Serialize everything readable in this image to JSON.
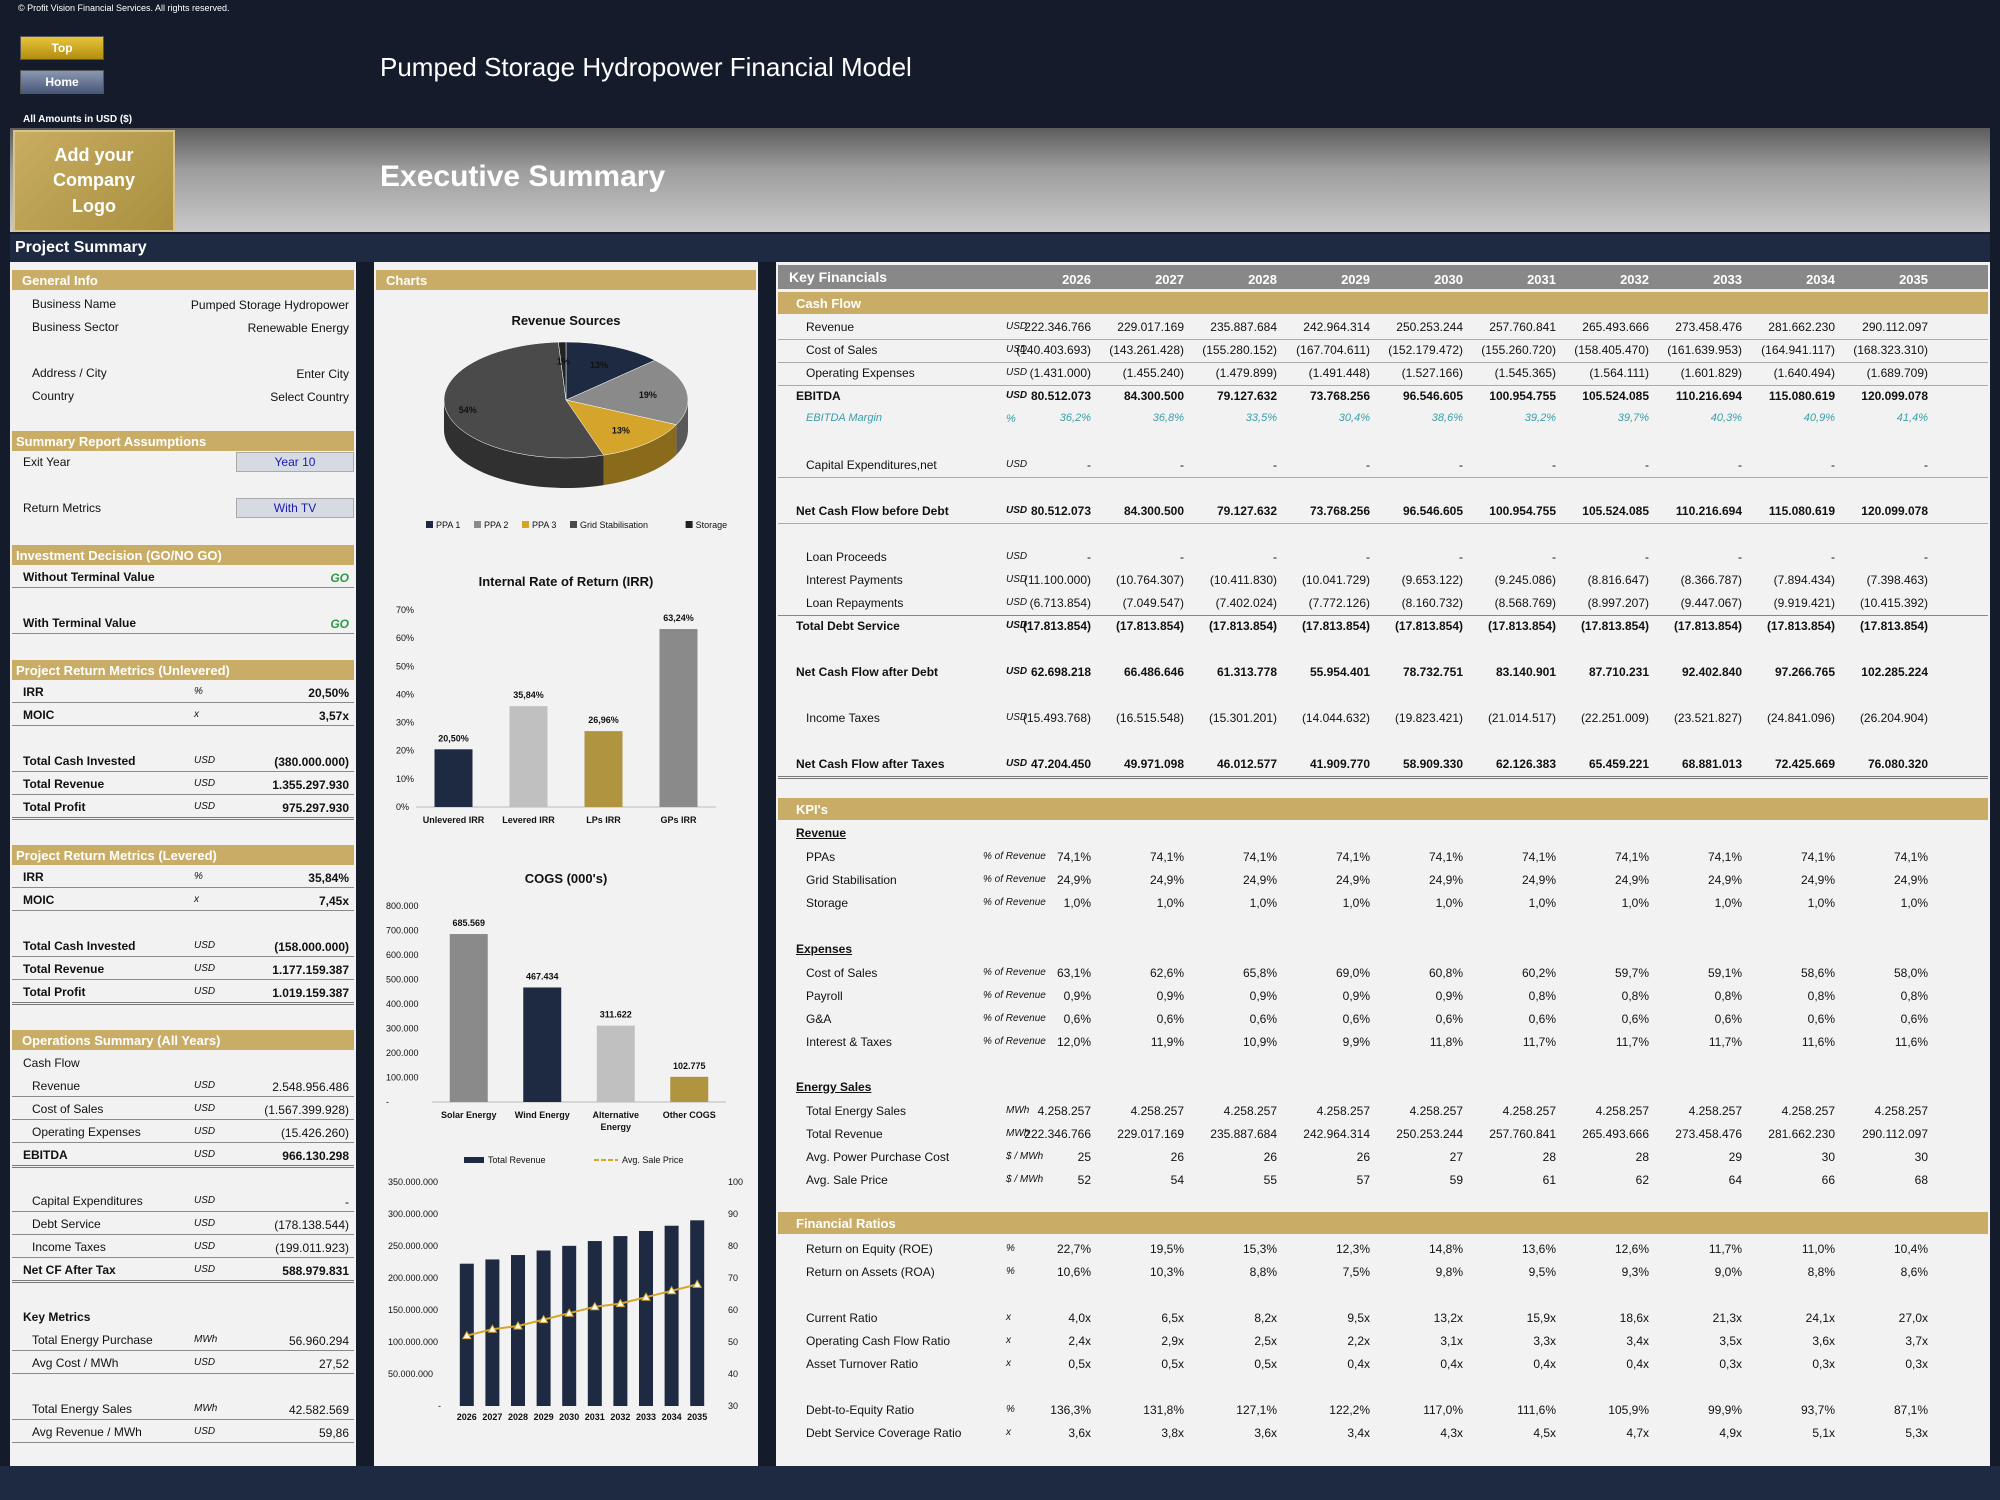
{
  "header": {
    "copyright": "© Profit Vision Financial Services. All rights reserved.",
    "top_button": "Top",
    "home_button": "Home",
    "title": "Pumped Storage Hydropower Financial Model",
    "amounts_label": "All Amounts in  USD ($)",
    "logo_text": "Add your Company Logo",
    "section_title": "Executive Summary",
    "project_summary": "Project Summary"
  },
  "left": {
    "general_info": {
      "title": "General Info",
      "rows": [
        {
          "label": "Business Name",
          "value": "Pumped Storage Hydropower"
        },
        {
          "label": "Business Sector",
          "value": "Renewable Energy"
        },
        {
          "label": "Address / City",
          "value": "Enter City"
        },
        {
          "label": "Country",
          "value": "Select Country"
        }
      ]
    },
    "assumptions": {
      "title": "Summary  Report Assumptions",
      "exit_year_label": "Exit Year",
      "exit_year_value": "Year 10",
      "return_metrics_label": "Return Metrics",
      "return_metrics_value": "With TV"
    },
    "investment": {
      "title": "Investment Decision (GO/NO GO)",
      "without_label": "Without Terminal Value",
      "without_value": "GO",
      "with_label": "With Terminal Value",
      "with_value": "GO"
    },
    "unlevered": {
      "title": "Project Return Metrics (Unlevered)",
      "irr_label": "IRR",
      "irr_unit": "%",
      "irr_value": "20,50%",
      "moic_label": "MOIC",
      "moic_unit": "x",
      "moic_value": "3,57x",
      "tci_label": "Total Cash Invested",
      "tci_unit": "USD",
      "tci_value": "(380.000.000)",
      "tr_label": "Total Revenue",
      "tr_unit": "USD",
      "tr_value": "1.355.297.930",
      "tp_label": "Total Profit",
      "tp_unit": "USD",
      "tp_value": "975.297.930"
    },
    "levered": {
      "title": "Project Return Metrics (Levered)",
      "irr_label": "IRR",
      "irr_unit": "%",
      "irr_value": "35,84%",
      "moic_label": "MOIC",
      "moic_unit": "x",
      "moic_value": "7,45x",
      "tci_label": "Total Cash Invested",
      "tci_unit": "USD",
      "tci_value": "(158.000.000)",
      "tr_label": "Total Revenue",
      "tr_unit": "USD",
      "tr_value": "1.177.159.387",
      "tp_label": "Total Profit",
      "tp_unit": "USD",
      "tp_value": "1.019.159.387"
    },
    "ops": {
      "title": "Operations Summary (All Years)",
      "cash_flow_label": "Cash Flow",
      "revenue_label": "Revenue",
      "revenue_unit": "USD",
      "revenue_value": "2.548.956.486",
      "cos_label": "Cost of Sales",
      "cos_unit": "USD",
      "cos_value": "(1.567.399.928)",
      "opex_label": "Operating Expenses",
      "opex_unit": "USD",
      "opex_value": "(15.426.260)",
      "ebitda_label": "EBITDA",
      "ebitda_unit": "USD",
      "ebitda_value": "966.130.298",
      "capex_label": "Capital Expenditures",
      "capex_unit": "USD",
      "capex_value": "-",
      "debt_label": "Debt Service",
      "debt_unit": "USD",
      "debt_value": "(178.138.544)",
      "tax_label": "Income Taxes",
      "tax_unit": "USD",
      "tax_value": "(199.011.923)",
      "netcf_label": "Net CF After Tax",
      "netcf_unit": "USD",
      "netcf_value": "588.979.831",
      "key_metrics_label": "Key Metrics",
      "tep_label": "Total Energy Purchase",
      "tep_unit": "MWh",
      "tep_value": "56.960.294",
      "acm_label": "Avg Cost / MWh",
      "acm_unit": "USD",
      "acm_value": "27,52",
      "tes_label": "Total Energy Sales",
      "tes_unit": "MWh",
      "tes_value": "42.582.569",
      "arm_label": "Avg Revenue / MWh",
      "arm_unit": "USD",
      "arm_value": "59,86"
    }
  },
  "charts_title": "Charts",
  "chart_data": [
    {
      "type": "pie",
      "title": "Revenue Sources",
      "labels": [
        "PPA 1",
        "PPA 2",
        "PPA 3",
        "Grid Stabilisation",
        "Storage"
      ],
      "values": [
        13,
        19,
        13,
        54,
        1
      ],
      "value_labels": [
        "13%",
        "19%",
        "13%",
        "54%",
        "1%"
      ],
      "colors": [
        "#1e2a42",
        "#8a8a8a",
        "#d4a52a",
        "#4a4a4a",
        "#222222"
      ]
    },
    {
      "type": "bar",
      "title": "Internal Rate of Return (IRR)",
      "categories": [
        "Unlevered IRR",
        "Levered IRR",
        "LPs IRR",
        "GPs IRR"
      ],
      "values": [
        20.5,
        35.84,
        26.96,
        63.24
      ],
      "value_labels": [
        "20,50%",
        "35,84%",
        "26,96%",
        "63,24%"
      ],
      "ylim": [
        0,
        70
      ],
      "yticks": [
        "0%",
        "10%",
        "20%",
        "30%",
        "40%",
        "50%",
        "60%",
        "70%"
      ],
      "colors": [
        "#1e2a42",
        "#c0c0c0",
        "#b09440",
        "#8a8a8a"
      ]
    },
    {
      "type": "bar",
      "title": "COGS (000's)",
      "categories": [
        "Solar Energy",
        "Wind Energy",
        "Alternative Energy",
        "Other COGS"
      ],
      "values": [
        685569,
        467434,
        311622,
        102775
      ],
      "value_labels": [
        "685.569",
        "467.434",
        "311.622",
        "102.775"
      ],
      "ylim": [
        0,
        800000
      ],
      "yticks": [
        "-",
        "100.000",
        "200.000",
        "300.000",
        "400.000",
        "500.000",
        "600.000",
        "700.000",
        "800.000"
      ],
      "colors": [
        "#8a8a8a",
        "#1e2a42",
        "#c0c0c0",
        "#b09440"
      ]
    },
    {
      "type": "bar",
      "title": "",
      "categories": [
        "2026",
        "2027",
        "2028",
        "2029",
        "2030",
        "2031",
        "2032",
        "2033",
        "2034",
        "2035"
      ],
      "series": [
        {
          "name": "Total Revenue",
          "values": [
            222346766,
            229017169,
            235887684,
            242964314,
            250253244,
            257760841,
            265493666,
            273458476,
            281662230,
            290112097
          ]
        },
        {
          "name": "Avg. Sale Price",
          "values": [
            52,
            54,
            55,
            57,
            59,
            61,
            62,
            64,
            66,
            68
          ]
        }
      ],
      "ylim": [
        0,
        350000000
      ],
      "y2lim": [
        30,
        100
      ],
      "yticks": [
        "-",
        "50.000.000",
        "100.000.000",
        "150.000.000",
        "200.000.000",
        "250.000.000",
        "300.000.000",
        "350.000.000"
      ],
      "y2ticks": [
        "30",
        "40",
        "50",
        "60",
        "70",
        "80",
        "90",
        "100"
      ]
    }
  ],
  "kf": {
    "title": "Key Financials",
    "years": [
      "2026",
      "2027",
      "2028",
      "2029",
      "2030",
      "2031",
      "2032",
      "2033",
      "2034",
      "2035"
    ],
    "cash_flow_title": "Cash Flow",
    "rows": [
      {
        "label": "Revenue",
        "unit": "USD",
        "values": [
          "222.346.766",
          "229.017.169",
          "235.887.684",
          "242.964.314",
          "250.253.244",
          "257.760.841",
          "265.493.666",
          "273.458.476",
          "281.662.230",
          "290.112.097"
        ]
      },
      {
        "label": "Cost of Sales",
        "unit": "USD",
        "values": [
          "(140.403.693)",
          "(143.261.428)",
          "(155.280.152)",
          "(167.704.611)",
          "(152.179.472)",
          "(155.260.720)",
          "(158.405.470)",
          "(161.639.953)",
          "(164.941.117)",
          "(168.323.310)"
        ]
      },
      {
        "label": "Operating Expenses",
        "unit": "USD",
        "values": [
          "(1.431.000)",
          "(1.455.240)",
          "(1.479.899)",
          "(1.491.448)",
          "(1.527.166)",
          "(1.545.365)",
          "(1.564.111)",
          "(1.601.829)",
          "(1.640.494)",
          "(1.689.709)"
        ]
      },
      {
        "label": "EBITDA",
        "unit": "USD",
        "values": [
          "80.512.073",
          "84.300.500",
          "79.127.632",
          "73.768.256",
          "96.546.605",
          "100.954.755",
          "105.524.085",
          "110.216.694",
          "115.080.619",
          "120.099.078"
        ]
      },
      {
        "label": "EBITDA Margin",
        "unit": "%",
        "values": [
          "36,2%",
          "36,8%",
          "33,5%",
          "30,4%",
          "38,6%",
          "39,2%",
          "39,7%",
          "40,3%",
          "40,9%",
          "41,4%"
        ]
      },
      {
        "label": "Capital Expenditures,net",
        "unit": "USD",
        "values": [
          "-",
          "-",
          "-",
          "-",
          "-",
          "-",
          "-",
          "-",
          "-",
          "-"
        ]
      },
      {
        "label": "Net Cash Flow before Debt",
        "unit": "USD",
        "values": [
          "80.512.073",
          "84.300.500",
          "79.127.632",
          "73.768.256",
          "96.546.605",
          "100.954.755",
          "105.524.085",
          "110.216.694",
          "115.080.619",
          "120.099.078"
        ]
      },
      {
        "label": "Loan Proceeds",
        "unit": "USD",
        "values": [
          "-",
          "-",
          "-",
          "-",
          "-",
          "-",
          "-",
          "-",
          "-",
          "-"
        ]
      },
      {
        "label": "Interest Payments",
        "unit": "USD",
        "values": [
          "(11.100.000)",
          "(10.764.307)",
          "(10.411.830)",
          "(10.041.729)",
          "(9.653.122)",
          "(9.245.086)",
          "(8.816.647)",
          "(8.366.787)",
          "(7.894.434)",
          "(7.398.463)"
        ]
      },
      {
        "label": "Loan Repayments",
        "unit": "USD",
        "values": [
          "(6.713.854)",
          "(7.049.547)",
          "(7.402.024)",
          "(7.772.126)",
          "(8.160.732)",
          "(8.568.769)",
          "(8.997.207)",
          "(9.447.067)",
          "(9.919.421)",
          "(10.415.392)"
        ]
      },
      {
        "label": "Total Debt Service",
        "unit": "USD",
        "values": [
          "(17.813.854)",
          "(17.813.854)",
          "(17.813.854)",
          "(17.813.854)",
          "(17.813.854)",
          "(17.813.854)",
          "(17.813.854)",
          "(17.813.854)",
          "(17.813.854)",
          "(17.813.854)"
        ]
      },
      {
        "label": "Net Cash Flow after Debt",
        "unit": "USD",
        "values": [
          "62.698.218",
          "66.486.646",
          "61.313.778",
          "55.954.401",
          "78.732.751",
          "83.140.901",
          "87.710.231",
          "92.402.840",
          "97.266.765",
          "102.285.224"
        ]
      },
      {
        "label": "Income Taxes",
        "unit": "USD",
        "values": [
          "(15.493.768)",
          "(16.515.548)",
          "(15.301.201)",
          "(14.044.632)",
          "(19.823.421)",
          "(21.014.517)",
          "(22.251.009)",
          "(23.521.827)",
          "(24.841.096)",
          "(26.204.904)"
        ]
      },
      {
        "label": "Net Cash Flow after Taxes",
        "unit": "USD",
        "values": [
          "47.204.450",
          "49.971.098",
          "46.012.577",
          "41.909.770",
          "58.909.330",
          "62.126.383",
          "65.459.221",
          "68.881.013",
          "72.425.669",
          "76.080.320"
        ]
      }
    ],
    "kpi_title": "KPI's",
    "kpi_revenue_label": "Revenue",
    "kpi_revenue": [
      {
        "label": "PPAs",
        "unit": "% of Revenue",
        "values": [
          "74,1%",
          "74,1%",
          "74,1%",
          "74,1%",
          "74,1%",
          "74,1%",
          "74,1%",
          "74,1%",
          "74,1%",
          "74,1%"
        ]
      },
      {
        "label": "Grid Stabilisation",
        "unit": "% of Revenue",
        "values": [
          "24,9%",
          "24,9%",
          "24,9%",
          "24,9%",
          "24,9%",
          "24,9%",
          "24,9%",
          "24,9%",
          "24,9%",
          "24,9%"
        ]
      },
      {
        "label": "Storage",
        "unit": "% of Revenue",
        "values": [
          "1,0%",
          "1,0%",
          "1,0%",
          "1,0%",
          "1,0%",
          "1,0%",
          "1,0%",
          "1,0%",
          "1,0%",
          "1,0%"
        ]
      }
    ],
    "kpi_expenses_label": "Expenses",
    "kpi_expenses": [
      {
        "label": "Cost of Sales",
        "unit": "% of Revenue",
        "values": [
          "63,1%",
          "62,6%",
          "65,8%",
          "69,0%",
          "60,8%",
          "60,2%",
          "59,7%",
          "59,1%",
          "58,6%",
          "58,0%"
        ]
      },
      {
        "label": "Payroll",
        "unit": "% of Revenue",
        "values": [
          "0,9%",
          "0,9%",
          "0,9%",
          "0,9%",
          "0,9%",
          "0,8%",
          "0,8%",
          "0,8%",
          "0,8%",
          "0,8%"
        ]
      },
      {
        "label": "G&A",
        "unit": "% of Revenue",
        "values": [
          "0,6%",
          "0,6%",
          "0,6%",
          "0,6%",
          "0,6%",
          "0,6%",
          "0,6%",
          "0,6%",
          "0,6%",
          "0,6%"
        ]
      },
      {
        "label": "Interest & Taxes",
        "unit": "% of Revenue",
        "values": [
          "12,0%",
          "11,9%",
          "10,9%",
          "9,9%",
          "11,8%",
          "11,7%",
          "11,7%",
          "11,7%",
          "11,6%",
          "11,6%"
        ]
      }
    ],
    "kpi_energy_label": "Energy Sales",
    "kpi_energy": [
      {
        "label": "Total Energy Sales",
        "unit": "MWh",
        "values": [
          "4.258.257",
          "4.258.257",
          "4.258.257",
          "4.258.257",
          "4.258.257",
          "4.258.257",
          "4.258.257",
          "4.258.257",
          "4.258.257",
          "4.258.257"
        ]
      },
      {
        "label": "Total Revenue",
        "unit": "MWh",
        "values": [
          "222.346.766",
          "229.017.169",
          "235.887.684",
          "242.964.314",
          "250.253.244",
          "257.760.841",
          "265.493.666",
          "273.458.476",
          "281.662.230",
          "290.112.097"
        ]
      },
      {
        "label": "Avg. Power Purchase Cost",
        "unit": "$ / MWh",
        "values": [
          "25",
          "26",
          "26",
          "26",
          "27",
          "28",
          "28",
          "29",
          "30",
          "30"
        ]
      },
      {
        "label": "Avg. Sale Price",
        "unit": "$ / MWh",
        "values": [
          "52",
          "54",
          "55",
          "57",
          "59",
          "61",
          "62",
          "64",
          "66",
          "68"
        ]
      }
    ],
    "ratios_title": "Financial Ratios",
    "ratios": [
      {
        "label": "Return on Equity (ROE)",
        "unit": "%",
        "values": [
          "22,7%",
          "19,5%",
          "15,3%",
          "12,3%",
          "14,8%",
          "13,6%",
          "12,6%",
          "11,7%",
          "11,0%",
          "10,4%"
        ]
      },
      {
        "label": "Return on Assets (ROA)",
        "unit": "%",
        "values": [
          "10,6%",
          "10,3%",
          "8,8%",
          "7,5%",
          "9,8%",
          "9,5%",
          "9,3%",
          "9,0%",
          "8,8%",
          "8,6%"
        ]
      },
      {
        "label": "Current Ratio",
        "unit": "x",
        "values": [
          "4,0x",
          "6,5x",
          "8,2x",
          "9,5x",
          "13,2x",
          "15,9x",
          "18,6x",
          "21,3x",
          "24,1x",
          "27,0x"
        ]
      },
      {
        "label": "Operating Cash Flow Ratio",
        "unit": "x",
        "values": [
          "2,4x",
          "2,9x",
          "2,5x",
          "2,2x",
          "3,1x",
          "3,3x",
          "3,4x",
          "3,5x",
          "3,6x",
          "3,7x"
        ]
      },
      {
        "label": "Asset Turnover Ratio",
        "unit": "x",
        "values": [
          "0,5x",
          "0,5x",
          "0,5x",
          "0,4x",
          "0,4x",
          "0,4x",
          "0,4x",
          "0,3x",
          "0,3x",
          "0,3x"
        ]
      },
      {
        "label": "Debt-to-Equity Ratio",
        "unit": "%",
        "values": [
          "136,3%",
          "131,8%",
          "127,1%",
          "122,2%",
          "117,0%",
          "111,6%",
          "105,9%",
          "99,9%",
          "93,7%",
          "87,1%"
        ]
      },
      {
        "label": "Debt Service Coverage Ratio",
        "unit": "x",
        "values": [
          "3,6x",
          "3,8x",
          "3,6x",
          "3,4x",
          "4,3x",
          "4,5x",
          "4,7x",
          "4,9x",
          "5,1x",
          "5,3x"
        ]
      }
    ]
  }
}
